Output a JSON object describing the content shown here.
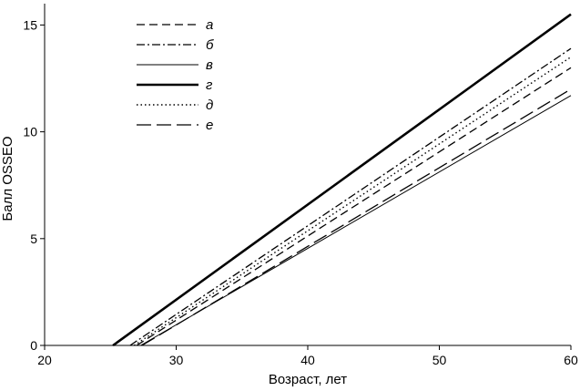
{
  "chart_data": {
    "type": "line",
    "xlabel": "Возраст, лет",
    "ylabel": "Балл OSSEO",
    "xlim": [
      20,
      60
    ],
    "ylim": [
      0,
      16
    ],
    "xticks": [
      20,
      30,
      40,
      50,
      60
    ],
    "yticks": [
      0,
      5,
      10,
      15
    ],
    "grid": false,
    "legend_position": "top-left",
    "series": [
      {
        "name": "а",
        "style": "dashed",
        "x": [
          27.0,
          60
        ],
        "y": [
          0,
          13.0
        ]
      },
      {
        "name": "б",
        "style": "dashdot",
        "x": [
          26.5,
          60
        ],
        "y": [
          0,
          13.9
        ]
      },
      {
        "name": "в",
        "style": "thin-solid",
        "x": [
          27.3,
          60
        ],
        "y": [
          0,
          11.7
        ]
      },
      {
        "name": "г",
        "style": "thick-solid",
        "x": [
          25.2,
          60
        ],
        "y": [
          0,
          15.5
        ]
      },
      {
        "name": "д",
        "style": "dotted",
        "x": [
          26.8,
          60
        ],
        "y": [
          0,
          13.5
        ]
      },
      {
        "name": "е",
        "style": "longdash",
        "x": [
          27.4,
          60
        ],
        "y": [
          0,
          12.0
        ]
      }
    ]
  }
}
